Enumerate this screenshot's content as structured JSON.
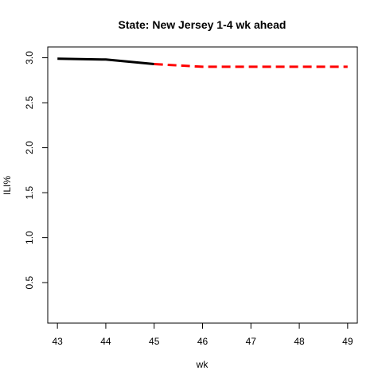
{
  "chart_data": {
    "type": "line",
    "title": "State: New Jersey 1-4 wk ahead",
    "xlabel": "wk",
    "ylabel": "ILI%",
    "xlim": [
      42.8,
      49.2
    ],
    "ylim": [
      0.05,
      3.12
    ],
    "x_ticks": [
      43,
      44,
      45,
      46,
      47,
      48,
      49
    ],
    "y_ticks": [
      0.5,
      1.0,
      1.5,
      2.0,
      2.5,
      3.0
    ],
    "y_tick_labels": [
      "0.5",
      "1.0",
      "1.5",
      "2.0",
      "2.5",
      "3.0"
    ],
    "grid": false,
    "series": [
      {
        "style": "solid",
        "color": "#000000",
        "x": [
          43,
          44,
          45
        ],
        "y": [
          2.99,
          2.98,
          2.93
        ]
      },
      {
        "style": "dashed",
        "color": "#ff0000",
        "x": [
          45,
          46,
          47,
          48,
          49
        ],
        "y": [
          2.93,
          2.9,
          2.9,
          2.9,
          2.9
        ]
      }
    ]
  }
}
